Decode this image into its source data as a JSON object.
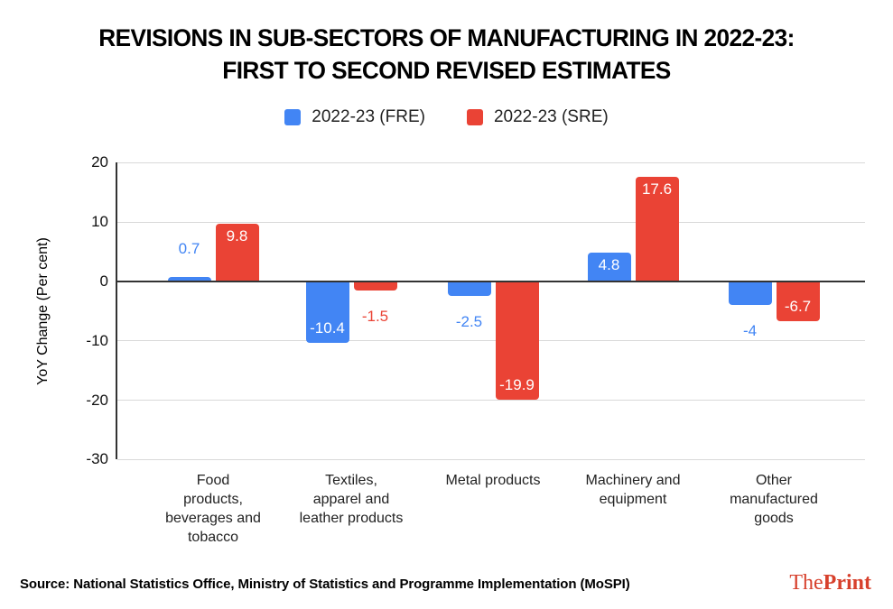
{
  "title": {
    "line1": "REVISIONS IN SUB-SECTORS OF MANUFACTURING IN 2022-23:",
    "line2": "FIRST TO SECOND REVISED ESTIMATES"
  },
  "legend": {
    "items": [
      {
        "label": "2022-23 (FRE)",
        "color": "#4285F4"
      },
      {
        "label": "2022-23 (SRE)",
        "color": "#EA4335"
      }
    ]
  },
  "chart_data": {
    "type": "bar",
    "title": "REVISIONS IN SUB-SECTORS OF MANUFACTURING IN 2022-23: FIRST TO SECOND REVISED ESTIMATES",
    "categories": [
      "Food\nproducts,\nbeverages and\ntobacco",
      "Textiles,\napparel and\nleather products",
      "Metal products",
      "Machinery and\nequipment",
      "Other\nmanufactured\ngoods"
    ],
    "series": [
      {
        "name": "2022-23 (FRE)",
        "color": "#4285F4",
        "values": [
          0.7,
          -10.4,
          -2.5,
          4.8,
          -4
        ],
        "labels": [
          "0.7",
          "-10.4",
          "-2.5",
          "4.8",
          "-4"
        ],
        "label_pos": [
          "outside",
          "inside",
          "outside",
          "inside",
          "outside"
        ]
      },
      {
        "name": "2022-23 (SRE)",
        "color": "#EA4335",
        "values": [
          9.8,
          -1.5,
          -19.9,
          17.6,
          -6.7
        ],
        "labels": [
          "9.8",
          "-1.5",
          "-19.9",
          "17.6",
          "-6.7"
        ],
        "label_pos": [
          "inside",
          "outside",
          "inside",
          "inside",
          "inside"
        ]
      }
    ],
    "xlabel": "",
    "ylabel": "YoY Change (Per cent)",
    "ylim": [
      -30,
      20
    ],
    "yticks": [
      20,
      10,
      0,
      -10,
      -20,
      -30
    ],
    "grid": true,
    "legend_position": "top",
    "inside_label_color": "#ffffff"
  },
  "footer": {
    "source": "Source: National Statistics Office, Ministry of Statistics and Programme Implementation (MoSPI)",
    "brand_the": "The",
    "brand_print": "Print",
    "brand_color": "#d7402c"
  }
}
